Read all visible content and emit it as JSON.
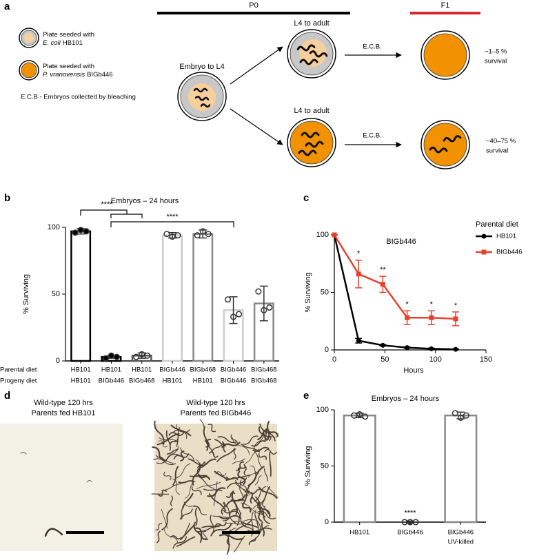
{
  "diagram": {
    "label": "a",
    "legend": [
      {
        "text": "Plate seeded with",
        "species": "E. coli",
        "strain": "HB101"
      },
      {
        "text": "Plate seeded with",
        "species": "P. vranovensis",
        "strain": "BIGb446"
      }
    ],
    "note": "E.C.B  -  Embryos collected by bleaching",
    "generations": [
      "P0",
      "F1"
    ],
    "stages": [
      "Embryo to L4",
      "L4 to adult",
      "L4 to adult"
    ],
    "transfer": [
      "E.C.B.",
      "E.C.B."
    ],
    "outcomes": [
      {
        "range": "~1–5 %",
        "text": "survival"
      },
      {
        "range": "~40–75 %",
        "text": "survival"
      }
    ]
  },
  "images": {
    "label": "d",
    "panels": [
      {
        "caption": [
          "Wild-type 120 hrs",
          "Parents fed HB101"
        ]
      },
      {
        "caption": [
          "Wild-type 120 hrs",
          "Parents fed BIGb446"
        ]
      }
    ]
  },
  "chart_data": [
    {
      "panel_label": "b",
      "type": "bar",
      "title": "Embryos – 24 hours",
      "ylabel": "% Surviving",
      "category_row_labels": [
        "Parental diet",
        "Progeny diet"
      ],
      "categories": [
        [
          "HB101",
          "HB101"
        ],
        [
          "HB101",
          "BIGb446"
        ],
        [
          "HB101",
          "BIGb468"
        ],
        [
          "BIGb446",
          "HB101"
        ],
        [
          "BIGb468",
          "HB101"
        ],
        [
          "BIGb446",
          "BIGb446"
        ],
        [
          "BIGb468",
          "BIGb468"
        ]
      ],
      "values": [
        97,
        3,
        4,
        94,
        95,
        38,
        43
      ],
      "errors": [
        2,
        1,
        2,
        2,
        3,
        10,
        13
      ],
      "points": [
        [
          96,
          98,
          97
        ],
        [
          2,
          4,
          3
        ],
        [
          3,
          5,
          4
        ],
        [
          95,
          93,
          94
        ],
        [
          94,
          97,
          95
        ],
        [
          46,
          33,
          35
        ],
        [
          52,
          38,
          40
        ]
      ],
      "colors": [
        "#000000",
        "#000000",
        "#555555",
        "#cccccc",
        "#888888",
        "#cccccc",
        "#888888"
      ],
      "ylim": [
        0,
        100
      ],
      "yticks": [
        0,
        50,
        100
      ],
      "annotations": [
        "****",
        "****"
      ]
    },
    {
      "panel_label": "c",
      "type": "line",
      "title": "BIGb446",
      "xlabel": "Hours",
      "ylabel": "% Surviving",
      "legend_title": "Parental diet",
      "x": [
        0,
        24,
        48,
        72,
        96,
        120
      ],
      "series": [
        {
          "name": "HB101",
          "color": "#000000",
          "values": [
            100,
            8,
            4,
            2,
            1,
            0.5
          ],
          "errors": [
            0,
            2,
            0.5,
            0.5,
            0.5,
            0.3
          ]
        },
        {
          "name": "BIGb446",
          "color": "#e8402f",
          "values": [
            100,
            66,
            57,
            28,
            28,
            27
          ],
          "errors": [
            0,
            12,
            7,
            6,
            6,
            6
          ]
        }
      ],
      "xlim": [
        0,
        150
      ],
      "xticks": [
        0,
        50,
        100,
        150
      ],
      "ylim": [
        0,
        100
      ],
      "yticks": [
        0,
        50,
        100
      ],
      "annotations": [
        {
          "x": 24,
          "text": "*"
        },
        {
          "x": 48,
          "text": "**"
        },
        {
          "x": 72,
          "text": "*"
        },
        {
          "x": 96,
          "text": "*"
        },
        {
          "x": 120,
          "text": "*"
        }
      ]
    },
    {
      "panel_label": "e",
      "type": "bar",
      "title": "Embryos – 24 hours",
      "ylabel": "% Surviving",
      "categories": [
        [
          "HB101"
        ],
        [
          "BIGb446"
        ],
        [
          "BIGb446",
          "UV-killed"
        ]
      ],
      "values": [
        95,
        0,
        95
      ],
      "errors": [
        2,
        1,
        3
      ],
      "points": [
        [
          95,
          96,
          94
        ],
        [
          0,
          0,
          0
        ],
        [
          97,
          93,
          95
        ]
      ],
      "colors": [
        "#888888",
        "#888888",
        "#888888"
      ],
      "ylim": [
        0,
        100
      ],
      "yticks": [
        0,
        50,
        100
      ],
      "annotations": [
        "****"
      ]
    }
  ]
}
